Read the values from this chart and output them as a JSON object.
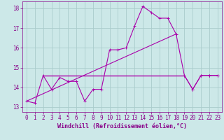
{
  "background_color": "#cce8e8",
  "grid_color": "#aacccc",
  "line_color": "#aa00aa",
  "xlim": [
    -0.5,
    23.5
  ],
  "ylim": [
    12.75,
    18.35
  ],
  "yticks": [
    13,
    14,
    15,
    16,
    17,
    18
  ],
  "xticks": [
    0,
    1,
    2,
    3,
    4,
    5,
    6,
    7,
    8,
    9,
    10,
    11,
    12,
    13,
    14,
    15,
    16,
    17,
    18,
    19,
    20,
    21,
    22,
    23
  ],
  "xlabel": "Windchill (Refroidissement éolien,°C)",
  "series1_x": [
    0,
    1,
    2,
    3,
    4,
    5,
    6,
    7,
    8,
    9,
    10,
    11,
    12,
    13,
    14,
    15,
    16,
    17,
    18,
    19,
    20,
    21,
    22,
    23
  ],
  "series1_y": [
    13.3,
    13.2,
    14.6,
    13.9,
    14.5,
    14.3,
    14.3,
    13.3,
    13.9,
    13.9,
    15.9,
    15.9,
    16.0,
    17.1,
    18.1,
    17.8,
    17.5,
    17.5,
    16.7,
    14.6,
    13.9,
    14.6,
    14.6,
    14.6
  ],
  "trendline_x": [
    0,
    18
  ],
  "trendline_y": [
    13.3,
    16.7
  ],
  "hline_x": [
    2,
    19
  ],
  "hline_y": [
    14.6,
    14.6
  ],
  "right_dip_x": [
    19,
    20,
    21,
    22,
    23
  ],
  "right_dip_y": [
    14.6,
    13.9,
    14.6,
    14.6,
    14.6
  ],
  "font_color": "#880088",
  "tick_fontsize": 5.5,
  "label_fontsize": 6.0
}
